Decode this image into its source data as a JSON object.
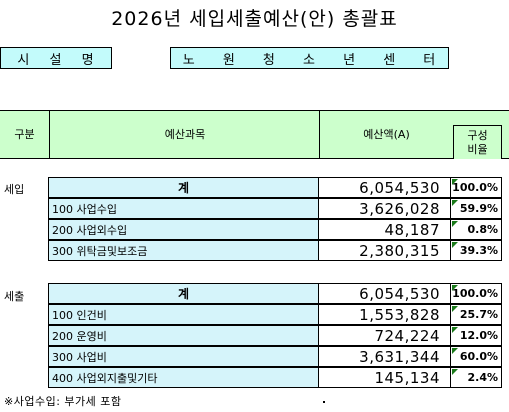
{
  "title": "2026년 세입세출예산(안) 총괄표",
  "facility": {
    "label": "시 설 명",
    "name": "노 원 청 소 년 센 터"
  },
  "table_header": {
    "category": "구분",
    "account": "예산과목",
    "amount": "예산액(A)",
    "ratio_line1": "구성",
    "ratio_line2": "비율"
  },
  "revenue": {
    "label": "세입",
    "rows": [
      {
        "account": "계",
        "amount": "6,054,530",
        "ratio": "100.0%"
      },
      {
        "account": "100   사업수입",
        "amount": "3,626,028",
        "ratio": "59.9%"
      },
      {
        "account": "200   사업외수입",
        "amount": "48,187",
        "ratio": "0.8%"
      },
      {
        "account": "300 위탁금및보조금",
        "amount": "2,380,315",
        "ratio": "39.3%"
      }
    ]
  },
  "expenditure": {
    "label": "세출",
    "rows": [
      {
        "account": "계",
        "amount": "6,054,530",
        "ratio": "100.0%"
      },
      {
        "account": "100   인건비",
        "amount": "1,553,828",
        "ratio": "25.7%"
      },
      {
        "account": "200   운영비",
        "amount": "724,224",
        "ratio": "12.0%"
      },
      {
        "account": "300     사업비",
        "amount": "3,631,344",
        "ratio": "60.0%"
      },
      {
        "account": "400   사업외지출및기타",
        "amount": "145,134",
        "ratio": "2.4%"
      }
    ]
  },
  "footnote": "※사업수입: 부가세 포함",
  "colors": {
    "header_fill": "#ccffcc",
    "facility_fill": "#c3fbfb",
    "account_fill": "#d5f4fa",
    "comment_marker": "#1a7a1a"
  }
}
